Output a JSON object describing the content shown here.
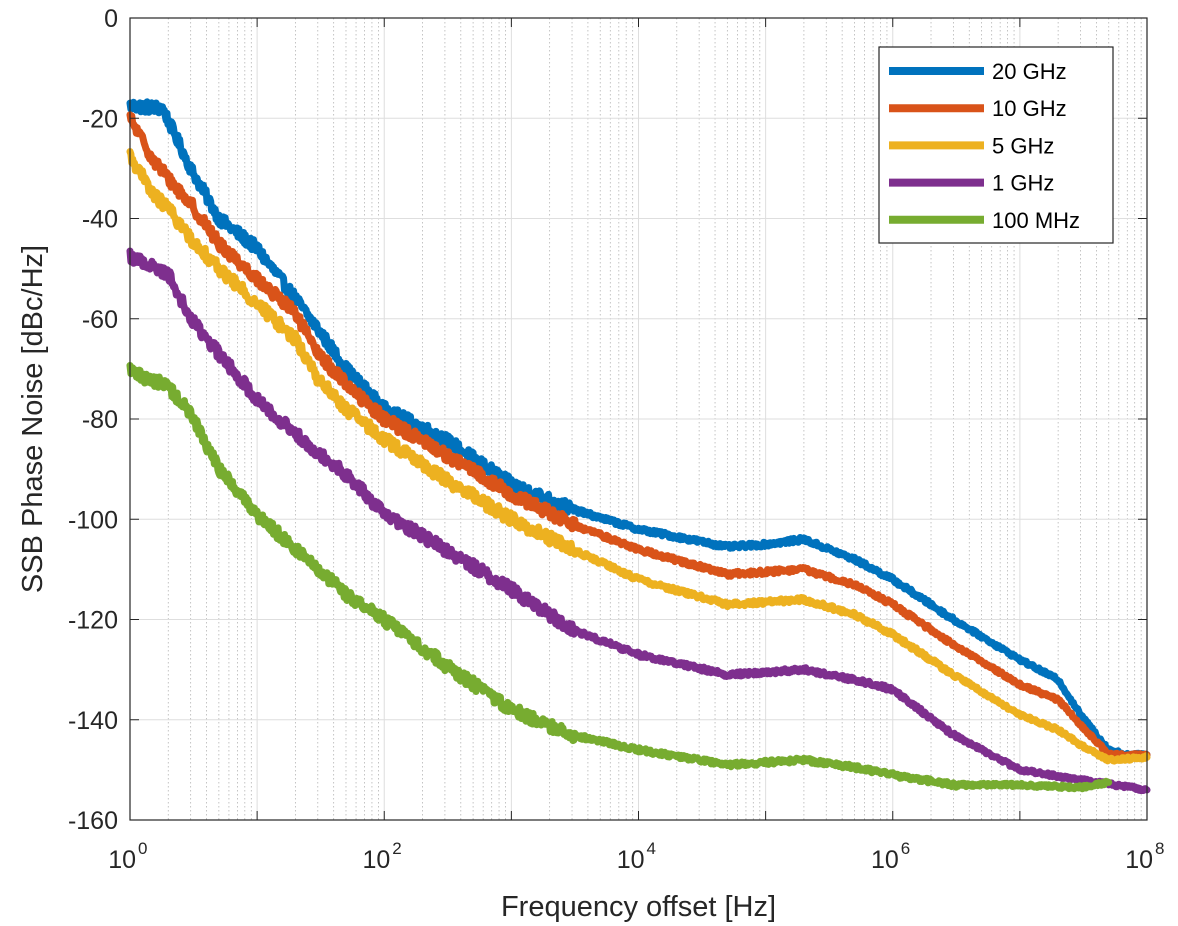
{
  "chart_data": {
    "type": "line",
    "title": "",
    "xlabel": "Frequency offset [Hz]",
    "ylabel": "SSB Phase Noise [dBc/Hz]",
    "x_scale": "log",
    "xlim": [
      1,
      100000000
    ],
    "ylim": [
      -160,
      0
    ],
    "grid": true,
    "legend_position": "top-right",
    "x_tick_labels": [
      {
        "value": 1,
        "base": "10",
        "exp": "0"
      },
      {
        "value": 100,
        "base": "10",
        "exp": "2"
      },
      {
        "value": 10000,
        "base": "10",
        "exp": "4"
      },
      {
        "value": 1000000,
        "base": "10",
        "exp": "6"
      },
      {
        "value": 100000000,
        "base": "10",
        "exp": "8"
      }
    ],
    "y_tick_labels": [
      "0",
      "-20",
      "-40",
      "-60",
      "-80",
      "-100",
      "-120",
      "-140",
      "-160"
    ],
    "series": [
      {
        "name": "20 GHz",
        "color": "#0072BD",
        "x": [
          1,
          1.8,
          3,
          5,
          10,
          20,
          30,
          50,
          100,
          300,
          1000,
          3000,
          10000,
          50000,
          100000,
          200000,
          500000,
          1000000,
          3000000,
          10000000,
          20000000,
          30000000,
          50000000,
          70000000,
          100000000
        ],
        "y": [
          -17.5,
          -18,
          -30,
          -40,
          -46,
          -56,
          -62,
          -70,
          -78,
          -84,
          -93,
          -98,
          -102,
          -105.5,
          -105,
          -104,
          -108,
          -112,
          -120,
          -128,
          -132,
          -139,
          -146,
          -147,
          -147
        ]
      },
      {
        "name": "10 GHz",
        "color": "#D95319",
        "x": [
          1,
          1.5,
          2,
          3,
          5,
          10,
          20,
          30,
          50,
          100,
          300,
          1000,
          3000,
          10000,
          50000,
          100000,
          200000,
          500000,
          1000000,
          3000000,
          10000000,
          20000000,
          30000000,
          50000000,
          100000000
        ],
        "y": [
          -20,
          -28,
          -32,
          -37,
          -45,
          -52,
          -59,
          -67,
          -73,
          -80,
          -87,
          -95,
          -101,
          -106,
          -111,
          -110.5,
          -110,
          -113,
          -117,
          -125,
          -133,
          -136,
          -141,
          -147,
          -147
        ]
      },
      {
        "name": "5 GHz",
        "color": "#EDB120",
        "x": [
          1,
          1.5,
          2,
          3,
          5,
          10,
          20,
          30,
          50,
          100,
          300,
          1000,
          3000,
          10000,
          50000,
          100000,
          200000,
          500000,
          1000000,
          3000000,
          10000000,
          20000000,
          30000000,
          50000000,
          100000000
        ],
        "y": [
          -27.5,
          -35,
          -38,
          -44,
          -50,
          -57,
          -64,
          -72,
          -78,
          -84,
          -92,
          -100,
          -106,
          -112,
          -117,
          -116.5,
          -116,
          -119,
          -123,
          -131,
          -139,
          -142,
          -145,
          -148,
          -147.5
        ]
      },
      {
        "name": "1 GHz",
        "color": "#7E2F8E",
        "x": [
          1,
          2,
          3,
          5,
          10,
          20,
          50,
          100,
          300,
          1000,
          3000,
          10000,
          50000,
          100000,
          200000,
          500000,
          1000000,
          3000000,
          10000000,
          30000000,
          100000000
        ],
        "y": [
          -47.5,
          -51,
          -60,
          -67,
          -76,
          -83,
          -91,
          -99,
          -106,
          -114,
          -122,
          -127,
          -131,
          -130.5,
          -130,
          -132,
          -134,
          -143,
          -150,
          -152,
          -154
        ]
      },
      {
        "name": "100 MHz",
        "color": "#77AC30",
        "x": [
          1,
          2,
          3,
          5,
          10,
          20,
          50,
          100,
          300,
          1000,
          3000,
          10000,
          50000,
          100000,
          200000,
          500000,
          1000000,
          3000000,
          10000000,
          30000000,
          50000000
        ],
        "y": [
          -70.5,
          -73.5,
          -79,
          -90,
          -99,
          -106,
          -115,
          -120,
          -129,
          -138,
          -143,
          -146,
          -149,
          -148.5,
          -148,
          -149.5,
          -151,
          -153,
          -153,
          -153.5,
          -152.5
        ]
      }
    ]
  }
}
